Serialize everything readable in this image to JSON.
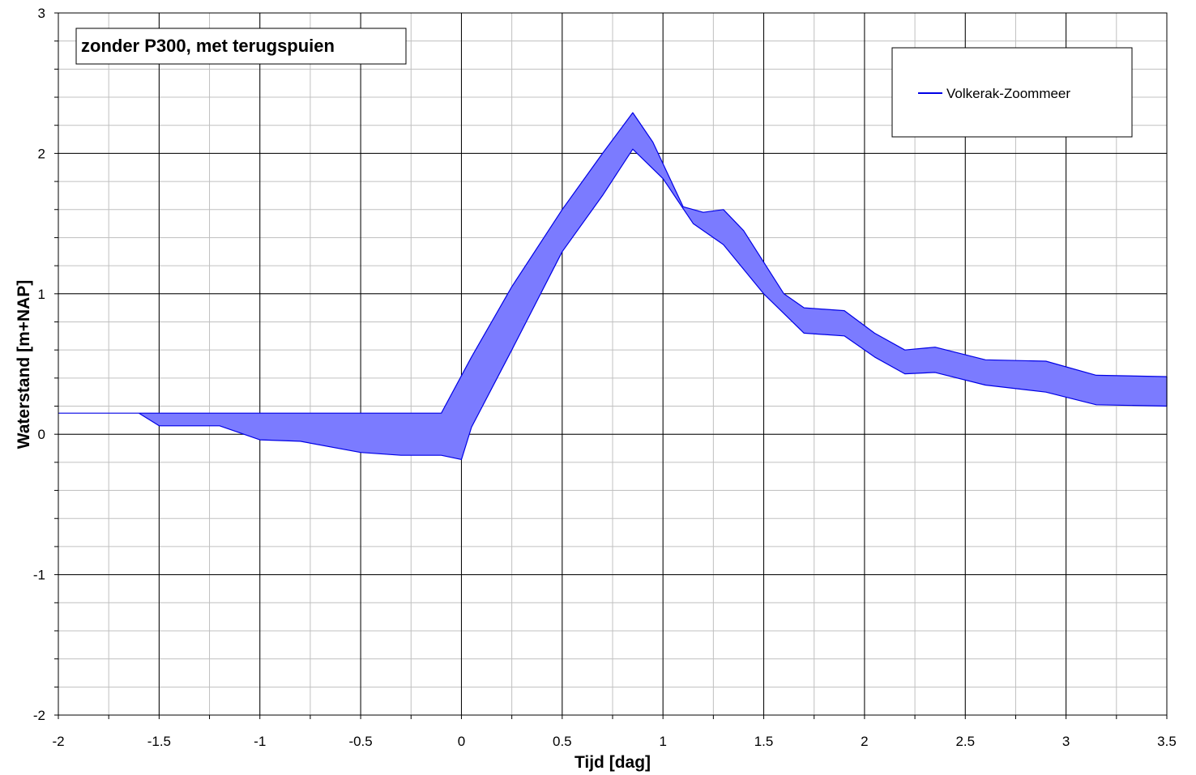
{
  "chart_data": {
    "type": "area",
    "title": "zonder P300, met terugspuien",
    "xlabel": "Tijd [dag]",
    "ylabel": "Waterstand [m+NAP]",
    "xlim": [
      -2,
      3.5
    ],
    "ylim": [
      -2,
      3
    ],
    "x_ticks": [
      "-2",
      "-1.5",
      "-1",
      "-0.5",
      "0",
      "0.5",
      "1",
      "1.5",
      "2",
      "2.5",
      "3",
      "3.5"
    ],
    "y_ticks": [
      "-2",
      "-1",
      "0",
      "1",
      "2",
      "3"
    ],
    "x_major_step": 0.5,
    "x_minor_step": 0.25,
    "y_major_step": 1,
    "y_minor_step": 0.2,
    "grid": true,
    "legend_position": "top-right",
    "colors": {
      "fill": "#7b7bff",
      "stroke": "#0000e6"
    },
    "series": [
      {
        "name": "Volkerak-Zoommeer",
        "upper": {
          "x": [
            -2,
            -1.6,
            -0.1,
            0.05,
            0.25,
            0.5,
            0.7,
            0.85,
            0.95,
            1.1,
            1.2,
            1.3,
            1.4,
            1.6,
            1.7,
            1.9,
            2.05,
            2.2,
            2.35,
            2.6,
            2.9,
            3.15,
            3.5
          ],
          "y": [
            0.15,
            0.15,
            0.15,
            0.55,
            1.05,
            1.6,
            2.0,
            2.29,
            2.08,
            1.62,
            1.58,
            1.6,
            1.45,
            1.0,
            0.9,
            0.88,
            0.72,
            0.6,
            0.62,
            0.53,
            0.52,
            0.42,
            0.41
          ]
        },
        "lower": {
          "x": [
            -2,
            -1.6,
            -1.5,
            -1.2,
            -1.0,
            -0.8,
            -0.5,
            -0.3,
            -0.1,
            0.0,
            0.05,
            0.25,
            0.5,
            0.7,
            0.85,
            1.0,
            1.15,
            1.3,
            1.5,
            1.7,
            1.9,
            2.05,
            2.2,
            2.35,
            2.6,
            2.9,
            3.15,
            3.5
          ],
          "y": [
            0.15,
            0.15,
            0.06,
            0.06,
            -0.04,
            -0.05,
            -0.13,
            -0.15,
            -0.15,
            -0.18,
            0.05,
            0.6,
            1.3,
            1.7,
            2.03,
            1.82,
            1.5,
            1.35,
            1.0,
            0.72,
            0.7,
            0.55,
            0.43,
            0.44,
            0.35,
            0.3,
            0.21,
            0.2
          ]
        }
      }
    ]
  }
}
